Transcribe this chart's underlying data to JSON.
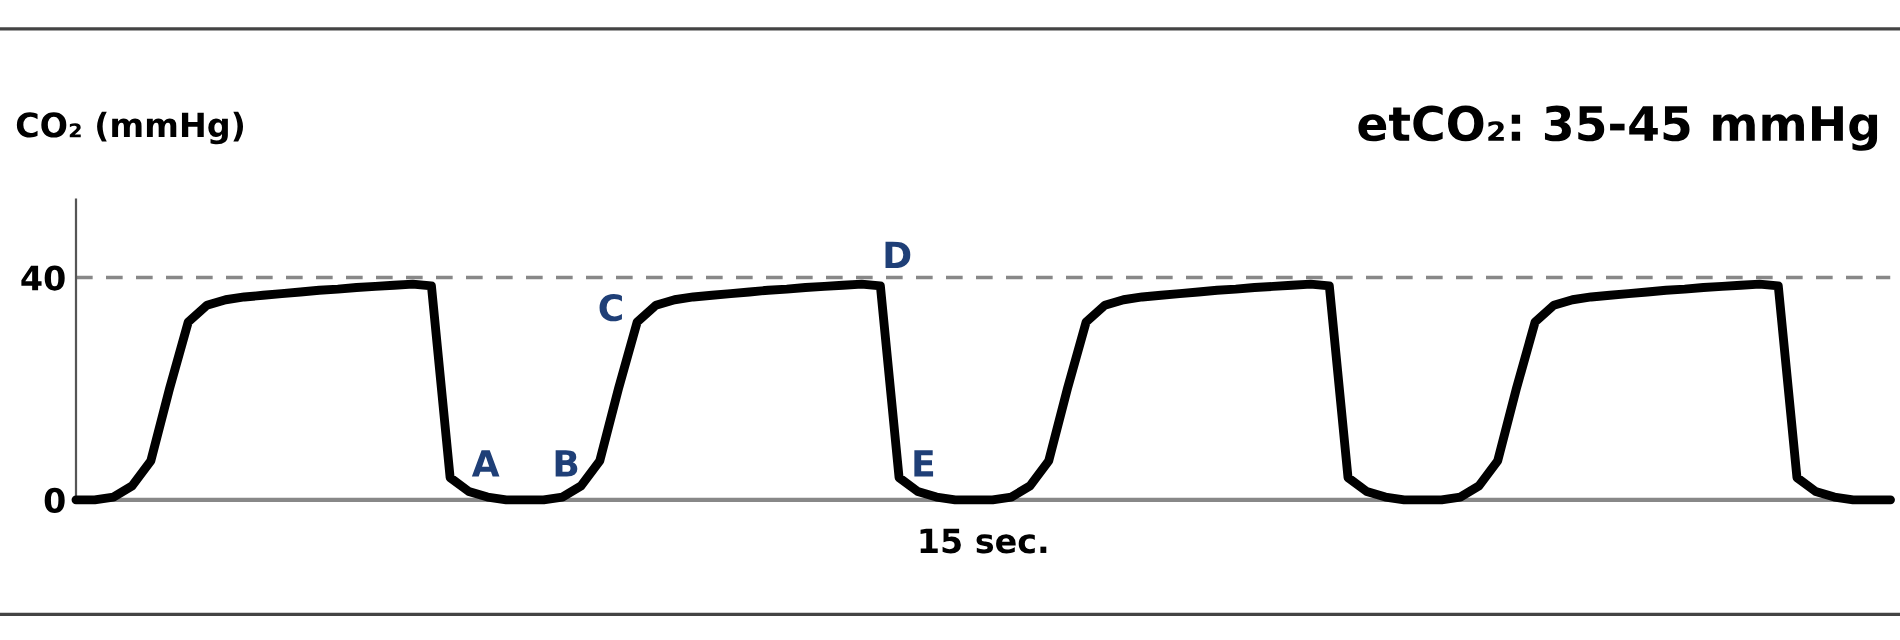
{
  "chart_data": {
    "type": "line",
    "title": "etCO₂: 35-45 mmHg",
    "ylabel": "CO₂ (mmHg)",
    "xlabel": "15 sec.",
    "categories": [
      null,
      null,
      null,
      null,
      null,
      null,
      null,
      null,
      null,
      null,
      null,
      null,
      null,
      null,
      null,
      null,
      null,
      null,
      null,
      null,
      null,
      null,
      null,
      null,
      null,
      null,
      null,
      null,
      null,
      null,
      null,
      null,
      null,
      null,
      null,
      null,
      null,
      null,
      null,
      null,
      null,
      null,
      null,
      null,
      null,
      null,
      null,
      null,
      null,
      null,
      null,
      null,
      null,
      null,
      null,
      null,
      null,
      null,
      null,
      null,
      null,
      null,
      null,
      null,
      null,
      null,
      null,
      null,
      null,
      null,
      null,
      null,
      null,
      null,
      null,
      null,
      null,
      null,
      null,
      null,
      null,
      null,
      null,
      null,
      null,
      null,
      null,
      null,
      null,
      null,
      null,
      null,
      null,
      null,
      null,
      null,
      null,
      null
    ],
    "series": [
      {
        "color": "#000000",
        "values": [
          0,
          0,
          0.5,
          2.5,
          7,
          20,
          32,
          35,
          36,
          36.5,
          36.8,
          37.1,
          37.4,
          37.7,
          37.9,
          38.2,
          38.4,
          38.6,
          38.8,
          38.5,
          4,
          1.5,
          0.5,
          0,
          0,
          0,
          0.5,
          2.5,
          7,
          20,
          32,
          35,
          36,
          36.5,
          36.8,
          37.1,
          37.4,
          37.7,
          37.9,
          38.2,
          38.4,
          38.6,
          38.8,
          38.5,
          4,
          1.5,
          0.5,
          0,
          0,
          0,
          0.5,
          2.5,
          7,
          20,
          32,
          35,
          36,
          36.5,
          36.8,
          37.1,
          37.4,
          37.7,
          37.9,
          38.2,
          38.4,
          38.6,
          38.8,
          38.5,
          4,
          1.5,
          0.5,
          0,
          0,
          0,
          0.5,
          2.5,
          7,
          20,
          32,
          35,
          36,
          36.5,
          36.8,
          37.1,
          37.4,
          37.7,
          37.9,
          38.2,
          38.4,
          38.6,
          38.8,
          38.5,
          4,
          1.5,
          0.5,
          0,
          0,
          0
        ]
      }
    ],
    "ylim": [
      0,
      54
    ],
    "yticks": [
      0,
      40
    ],
    "tick_labels": "y",
    "grid": false,
    "ref_lines": [
      {
        "axis": "y",
        "value": 40,
        "color": "#888888",
        "line_style": "dashed"
      }
    ],
    "annotations": [
      "A",
      "B",
      "C",
      "D",
      "E"
    ]
  }
}
